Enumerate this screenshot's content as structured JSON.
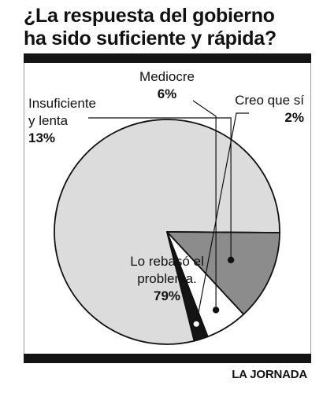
{
  "title_line1": "¿La respuesta del gobierno",
  "title_line2": "ha sido suficiente y rápida?",
  "source": "LA JORNADA",
  "colors": {
    "rule": "#141414",
    "slice_large": "#dcdcdc",
    "slice_insuficiente": "#8c8c8c",
    "slice_mediocre": "#ffffff",
    "slice_creo": "#141414",
    "outline": "#111111"
  },
  "chart_data": {
    "type": "pie",
    "title": "¿La respuesta del gobierno ha sido suficiente y rápida?",
    "slices": [
      {
        "label_lines": [
          "Lo rebasó el",
          "problema."
        ],
        "value": 79,
        "value_text": "79%",
        "color": "#dcdcdc"
      },
      {
        "label_lines": [
          "Insuficiente",
          "y lenta"
        ],
        "value": 13,
        "value_text": "13%",
        "color": "#8c8c8c"
      },
      {
        "label_lines": [
          "Mediocre"
        ],
        "value": 6,
        "value_text": "6%",
        "color": "#ffffff"
      },
      {
        "label_lines": [
          "Creo que sí"
        ],
        "value": 2,
        "value_text": "2%",
        "color": "#141414"
      }
    ]
  }
}
